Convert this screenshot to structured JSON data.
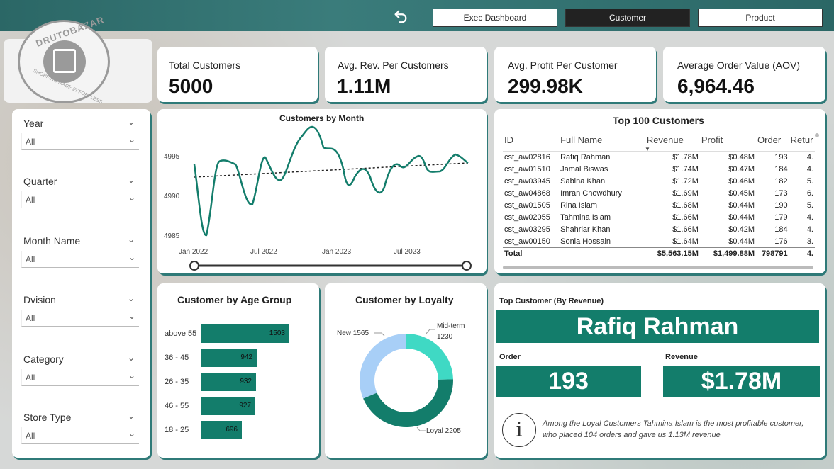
{
  "nav": {
    "back_icon": "undo-arrow-icon",
    "buttons": [
      "Exec Dashboard",
      "Customer",
      "Product"
    ],
    "active": "Customer"
  },
  "logo": {
    "top_text": "DRUTOBAZAR",
    "bottom_text": "SHOPPING MADE EFFORTLESS"
  },
  "kpis": [
    {
      "title": "Total Customers",
      "value": "5000"
    },
    {
      "title": "Avg. Rev. Per Customers",
      "value": "1.11M"
    },
    {
      "title": "Avg. Profit Per Customer",
      "value": "299.98K"
    },
    {
      "title": "Average Order Value (AOV)",
      "value": "6,964.46"
    }
  ],
  "slicers": [
    {
      "label": "Year",
      "value": "All"
    },
    {
      "label": "Quarter",
      "value": "All"
    },
    {
      "label": "Month Name",
      "value": "All"
    },
    {
      "label": "Dvision",
      "value": "All"
    },
    {
      "label": "Category",
      "value": "All"
    },
    {
      "label": "Store Type",
      "value": "All"
    }
  ],
  "month_chart": {
    "title": "Customers by Month",
    "yticks": [
      "4995",
      "4990",
      "4985"
    ],
    "xticks": [
      "Jan 2022",
      "Jul 2022",
      "Jan 2023",
      "Jul 2023"
    ]
  },
  "top_customers": {
    "title": "Top 100 Customers",
    "columns": [
      "ID",
      "Full Name",
      "Revenue",
      "Profit",
      "Order",
      "Retur"
    ],
    "rows": [
      [
        "cst_aw02816",
        "Rafiq Rahman",
        "$1.78M",
        "$0.48M",
        "193",
        "4."
      ],
      [
        "cst_aw01510",
        "Jamal Biswas",
        "$1.74M",
        "$0.47M",
        "184",
        "4."
      ],
      [
        "cst_aw03945",
        "Sabina Khan",
        "$1.72M",
        "$0.46M",
        "182",
        "5."
      ],
      [
        "cst_aw04868",
        "Imran Chowdhury",
        "$1.69M",
        "$0.45M",
        "173",
        "6."
      ],
      [
        "cst_aw01505",
        "Rina Islam",
        "$1.68M",
        "$0.44M",
        "190",
        "5."
      ],
      [
        "cst_aw02055",
        "Tahmina Islam",
        "$1.66M",
        "$0.44M",
        "179",
        "4."
      ],
      [
        "cst_aw03295",
        "Shahriar Khan",
        "$1.66M",
        "$0.42M",
        "184",
        "4."
      ],
      [
        "cst_aw00150",
        "Sonia Hossain",
        "$1.64M",
        "$0.44M",
        "176",
        "3."
      ]
    ],
    "total": [
      "Total",
      "",
      "$5,563.15M",
      "$1,499.88M",
      "798791",
      "4."
    ]
  },
  "age_chart": {
    "title": "Customer by Age Group",
    "groups": [
      {
        "label": "above 55",
        "value": 1503
      },
      {
        "label": "36 - 45",
        "value": 942
      },
      {
        "label": "26 - 35",
        "value": 932
      },
      {
        "label": "46 - 55",
        "value": 927
      },
      {
        "label": "18 - 25",
        "value": 696
      }
    ]
  },
  "loyalty_chart": {
    "title": "Customer by Loyalty",
    "new_label": "New 1565",
    "mid_label_1": "Mid-term",
    "mid_label_2": "1230",
    "loyal_label": "Loyal 2205",
    "segments": [
      {
        "name": "Mid-term",
        "value": 1230,
        "color": "#3fd9c4"
      },
      {
        "name": "Loyal",
        "value": 2205,
        "color": "#137d6b"
      },
      {
        "name": "New",
        "value": 1565,
        "color": "#a8cff7"
      }
    ]
  },
  "top_customer": {
    "section_title": "Top Customer (By Revenue)",
    "name": "Rafiq Rahman",
    "order_label": "Order",
    "order_value": "193",
    "revenue_label": "Revenue",
    "revenue_value": "$1.78M",
    "info_icon": "info-icon",
    "insight": "Among the Loyal Customers Tahmina Islam is the most profitable customer, who placed 104 orders and gave us 1.13M revenue"
  },
  "colors": {
    "accent": "#137d6b",
    "teal_bar": "#2f6f6e"
  }
}
